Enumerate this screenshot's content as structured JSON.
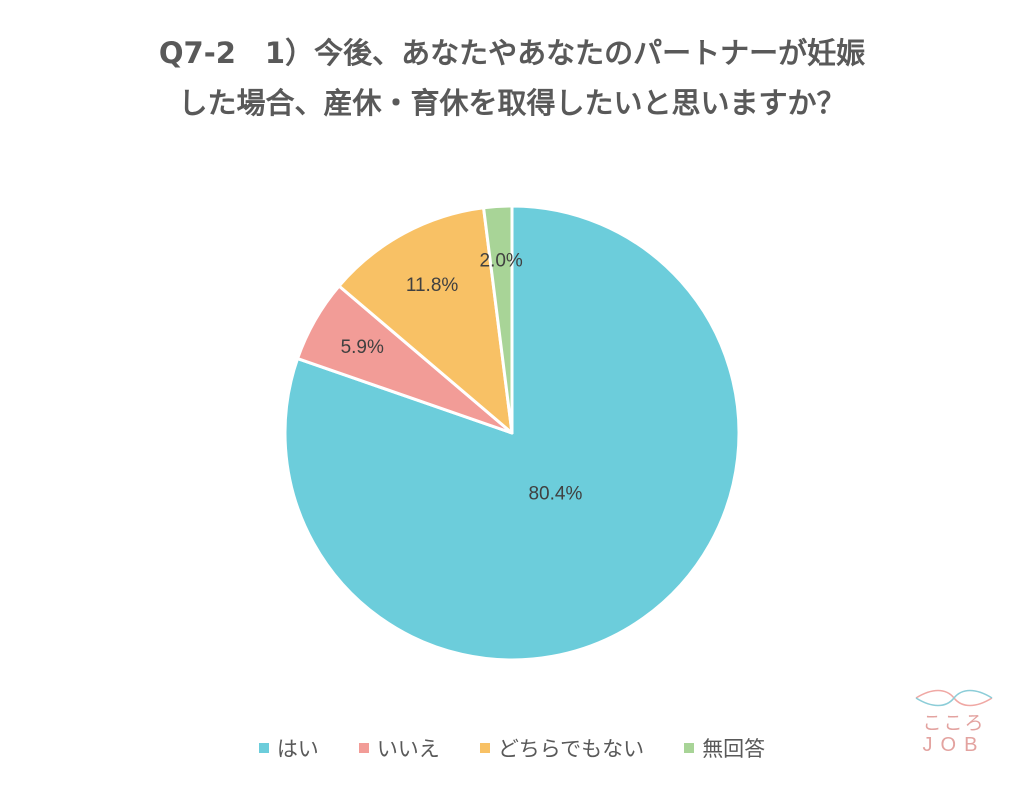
{
  "chart_data": {
    "type": "pie",
    "title_lines": [
      "Q7-2　1）今後、あなたやあなたのパートナーが妊娠",
      "した場合、産休・育休を取得したいと思いますか？"
    ],
    "categories": [
      "はい",
      "いいえ",
      "どちらでもない",
      "無回答"
    ],
    "values": [
      80.4,
      5.9,
      11.8,
      2.0
    ],
    "labels": [
      "80.4%",
      "5.9%",
      "11.8%",
      "2.0%"
    ],
    "colors": [
      "#6ccddb",
      "#f29c97",
      "#f8c165",
      "#a8d497"
    ],
    "start": "12 o'clock, clockwise",
    "legend_position": "bottom"
  },
  "logo": {
    "line1": "こころ",
    "line2": "JOB",
    "wave_color_1": "#f0a8a4",
    "wave_color_2": "#8ccdd8"
  }
}
